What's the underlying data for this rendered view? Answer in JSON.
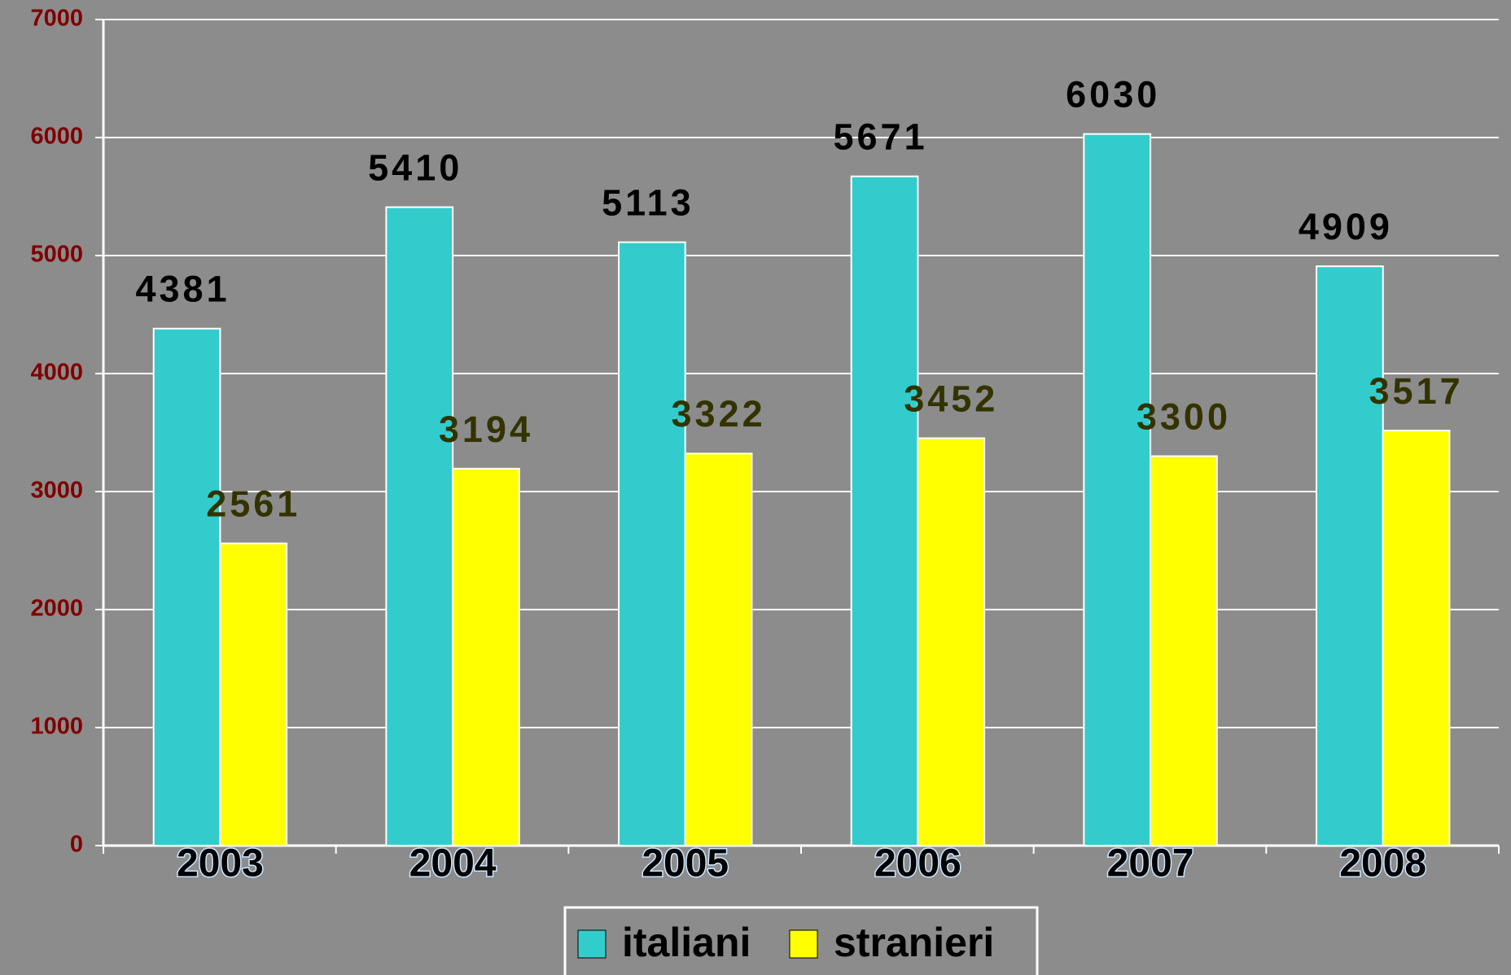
{
  "chart_data": {
    "type": "bar",
    "categories": [
      "2003",
      "2004",
      "2005",
      "2006",
      "2007",
      "2008"
    ],
    "series": [
      {
        "name": "italiani",
        "color": "#33cccc",
        "values": [
          4381,
          5410,
          5113,
          5671,
          6030,
          4909
        ]
      },
      {
        "name": "stranieri",
        "color": "#ffff00",
        "values": [
          2561,
          3194,
          3322,
          3452,
          3300,
          3517
        ]
      }
    ],
    "ylim": [
      0,
      7000
    ],
    "yticks": [
      0,
      1000,
      2000,
      3000,
      4000,
      5000,
      6000,
      7000
    ],
    "grid": true,
    "legend": "bottom"
  }
}
